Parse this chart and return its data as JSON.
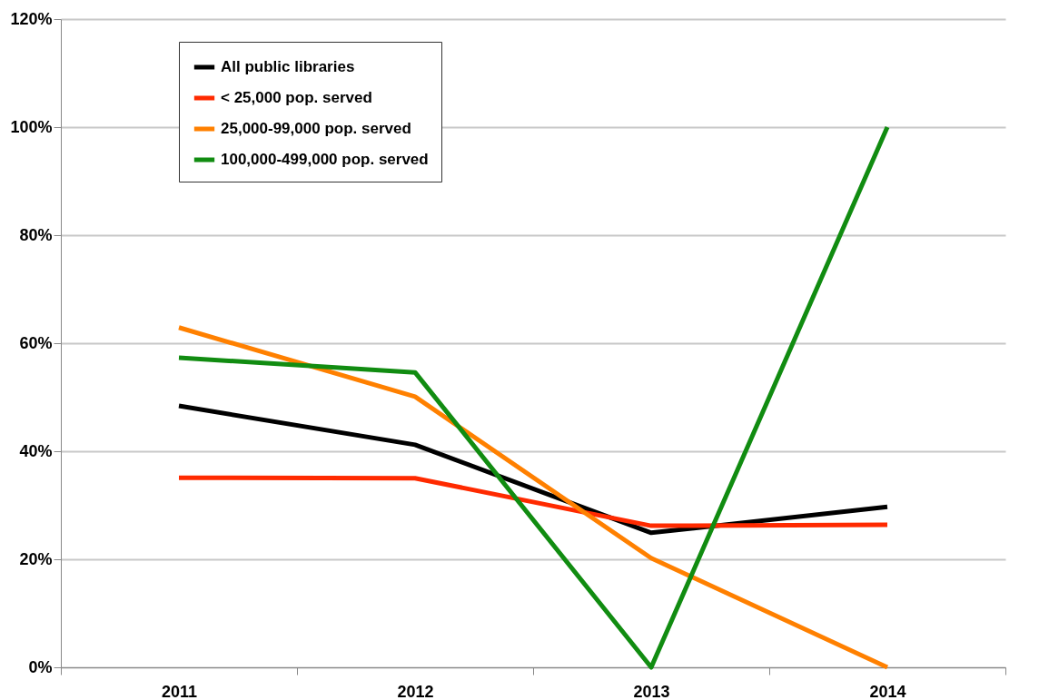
{
  "chart_data": {
    "type": "line",
    "categories": [
      "2011",
      "2012",
      "2013",
      "2014"
    ],
    "series": [
      {
        "name": "All public libraries",
        "color": "#000000",
        "values": [
          48.4,
          41.2,
          24.9,
          29.7
        ]
      },
      {
        "name": "< 25,000 pop. served",
        "color": "#ff2a00",
        "values": [
          35.1,
          35.0,
          26.2,
          26.4
        ]
      },
      {
        "name": "25,000-99,000 pop. served",
        "color": "#ff8000",
        "values": [
          62.9,
          50.1,
          20.2,
          0
        ]
      },
      {
        "name": "100,000-499,000 pop. served",
        "color": "#118c11",
        "values": [
          57.3,
          54.6,
          0,
          100
        ]
      }
    ],
    "ylim": [
      0,
      120
    ],
    "yticks": [
      {
        "value": 0,
        "label": "0%"
      },
      {
        "value": 20,
        "label": "20%"
      },
      {
        "value": 40,
        "label": "40%"
      },
      {
        "value": 60,
        "label": "60%"
      },
      {
        "value": 80,
        "label": "80%"
      },
      {
        "value": 100,
        "label": "100%"
      },
      {
        "value": 120,
        "label": "120%"
      }
    ],
    "grid": "y",
    "legend": "top left",
    "marker": "none",
    "line_style": "solid"
  }
}
